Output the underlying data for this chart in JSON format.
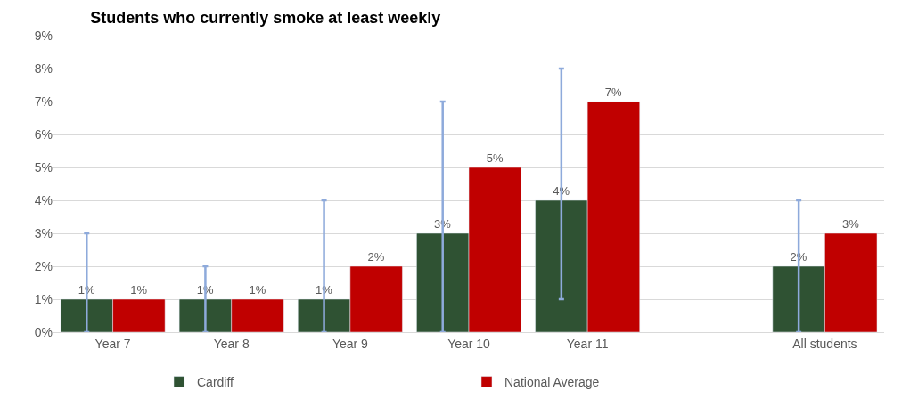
{
  "chart_data": {
    "type": "bar",
    "title": "Students who currently smoke at least weekly",
    "categories": [
      "Year 7",
      "Year 8",
      "Year 9",
      "Year 10",
      "Year 11",
      null,
      "All students"
    ],
    "series": [
      {
        "name": "Cardiff",
        "color": "#2f5233",
        "values": [
          1,
          1,
          1,
          3,
          4,
          null,
          2
        ],
        "value_labels": [
          "1%",
          "1%",
          "1%",
          "3%",
          "4%",
          null,
          "2%"
        ],
        "errors": [
          [
            0,
            3
          ],
          [
            0,
            2
          ],
          [
            0,
            4
          ],
          [
            0,
            7
          ],
          [
            1,
            8
          ],
          null,
          [
            0,
            4
          ]
        ]
      },
      {
        "name": "National Average",
        "color": "#c00000",
        "values": [
          1,
          1,
          2,
          5,
          7,
          null,
          3
        ],
        "value_labels": [
          "1%",
          "1%",
          "2%",
          "5%",
          "7%",
          null,
          "3%"
        ]
      }
    ],
    "ylim": [
      0,
      9
    ],
    "yticks": [
      {
        "value": 0,
        "label": "0%"
      },
      {
        "value": 1,
        "label": "1%"
      },
      {
        "value": 2,
        "label": "2%"
      },
      {
        "value": 3,
        "label": "3%"
      },
      {
        "value": 4,
        "label": "4%"
      },
      {
        "value": 5,
        "label": "5%"
      },
      {
        "value": 6,
        "label": "6%"
      },
      {
        "value": 7,
        "label": "7%"
      },
      {
        "value": 8,
        "label": "8%"
      },
      {
        "value": 9,
        "label": "9%"
      }
    ],
    "grid": "y",
    "legend": "bottom"
  }
}
